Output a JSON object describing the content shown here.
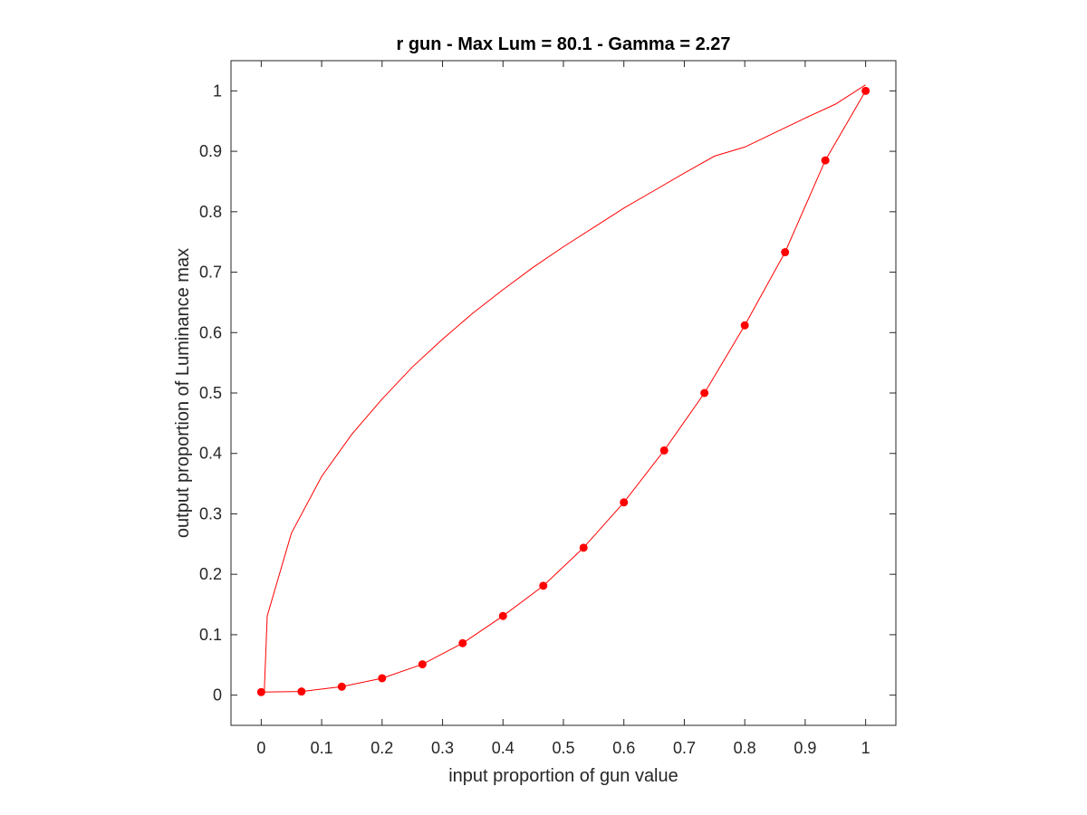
{
  "chart_data": {
    "type": "line",
    "title": "r gun - Max Lum = 80.1 - Gamma = 2.27",
    "xlabel": "input proportion of gun value",
    "ylabel": "output proportion of Luminance max",
    "xlim": [
      -0.05,
      1.05
    ],
    "ylim": [
      -0.05,
      1.05
    ],
    "x_ticks": [
      0,
      0.1,
      0.2,
      0.3,
      0.4,
      0.5,
      0.6,
      0.7,
      0.8,
      0.9,
      1
    ],
    "y_ticks": [
      0,
      0.1,
      0.2,
      0.3,
      0.4,
      0.5,
      0.6,
      0.7,
      0.8,
      0.9,
      1
    ],
    "x_tick_labels": [
      "0",
      "0.1",
      "0.2",
      "0.3",
      "0.4",
      "0.5",
      "0.6",
      "0.7",
      "0.8",
      "0.9",
      "1"
    ],
    "y_tick_labels": [
      "0",
      "0.1",
      "0.2",
      "0.3",
      "0.4",
      "0.5",
      "0.6",
      "0.7",
      "0.8",
      "0.9",
      "1"
    ],
    "grid": false,
    "box": true,
    "series": [
      {
        "kind": "markers+line",
        "color": "#ff0000",
        "x": [
          0,
          0.0667,
          0.1333,
          0.2,
          0.2667,
          0.3333,
          0.4,
          0.4667,
          0.5333,
          0.6,
          0.6667,
          0.7333,
          0.8,
          0.8667,
          0.9333,
          1
        ],
        "y": [
          0.005,
          0.006,
          0.014,
          0.028,
          0.051,
          0.086,
          0.131,
          0.181,
          0.244,
          0.319,
          0.405,
          0.5,
          0.612,
          0.733,
          0.885,
          1.0
        ]
      },
      {
        "kind": "line",
        "color": "#ff0000",
        "x": [
          0.005,
          0.01,
          0.05,
          0.1,
          0.15,
          0.2,
          0.25,
          0.3,
          0.35,
          0.4,
          0.45,
          0.5,
          0.55,
          0.6,
          0.65,
          0.7,
          0.75,
          0.8,
          0.85,
          0.9,
          0.95,
          1.0
        ],
        "y": [
          0.004,
          0.131,
          0.268,
          0.362,
          0.432,
          0.49,
          0.543,
          0.589,
          0.632,
          0.671,
          0.708,
          0.742,
          0.774,
          0.806,
          0.835,
          0.864,
          0.892,
          0.907,
          0.931,
          0.955,
          0.978,
          1.01
        ]
      }
    ]
  }
}
